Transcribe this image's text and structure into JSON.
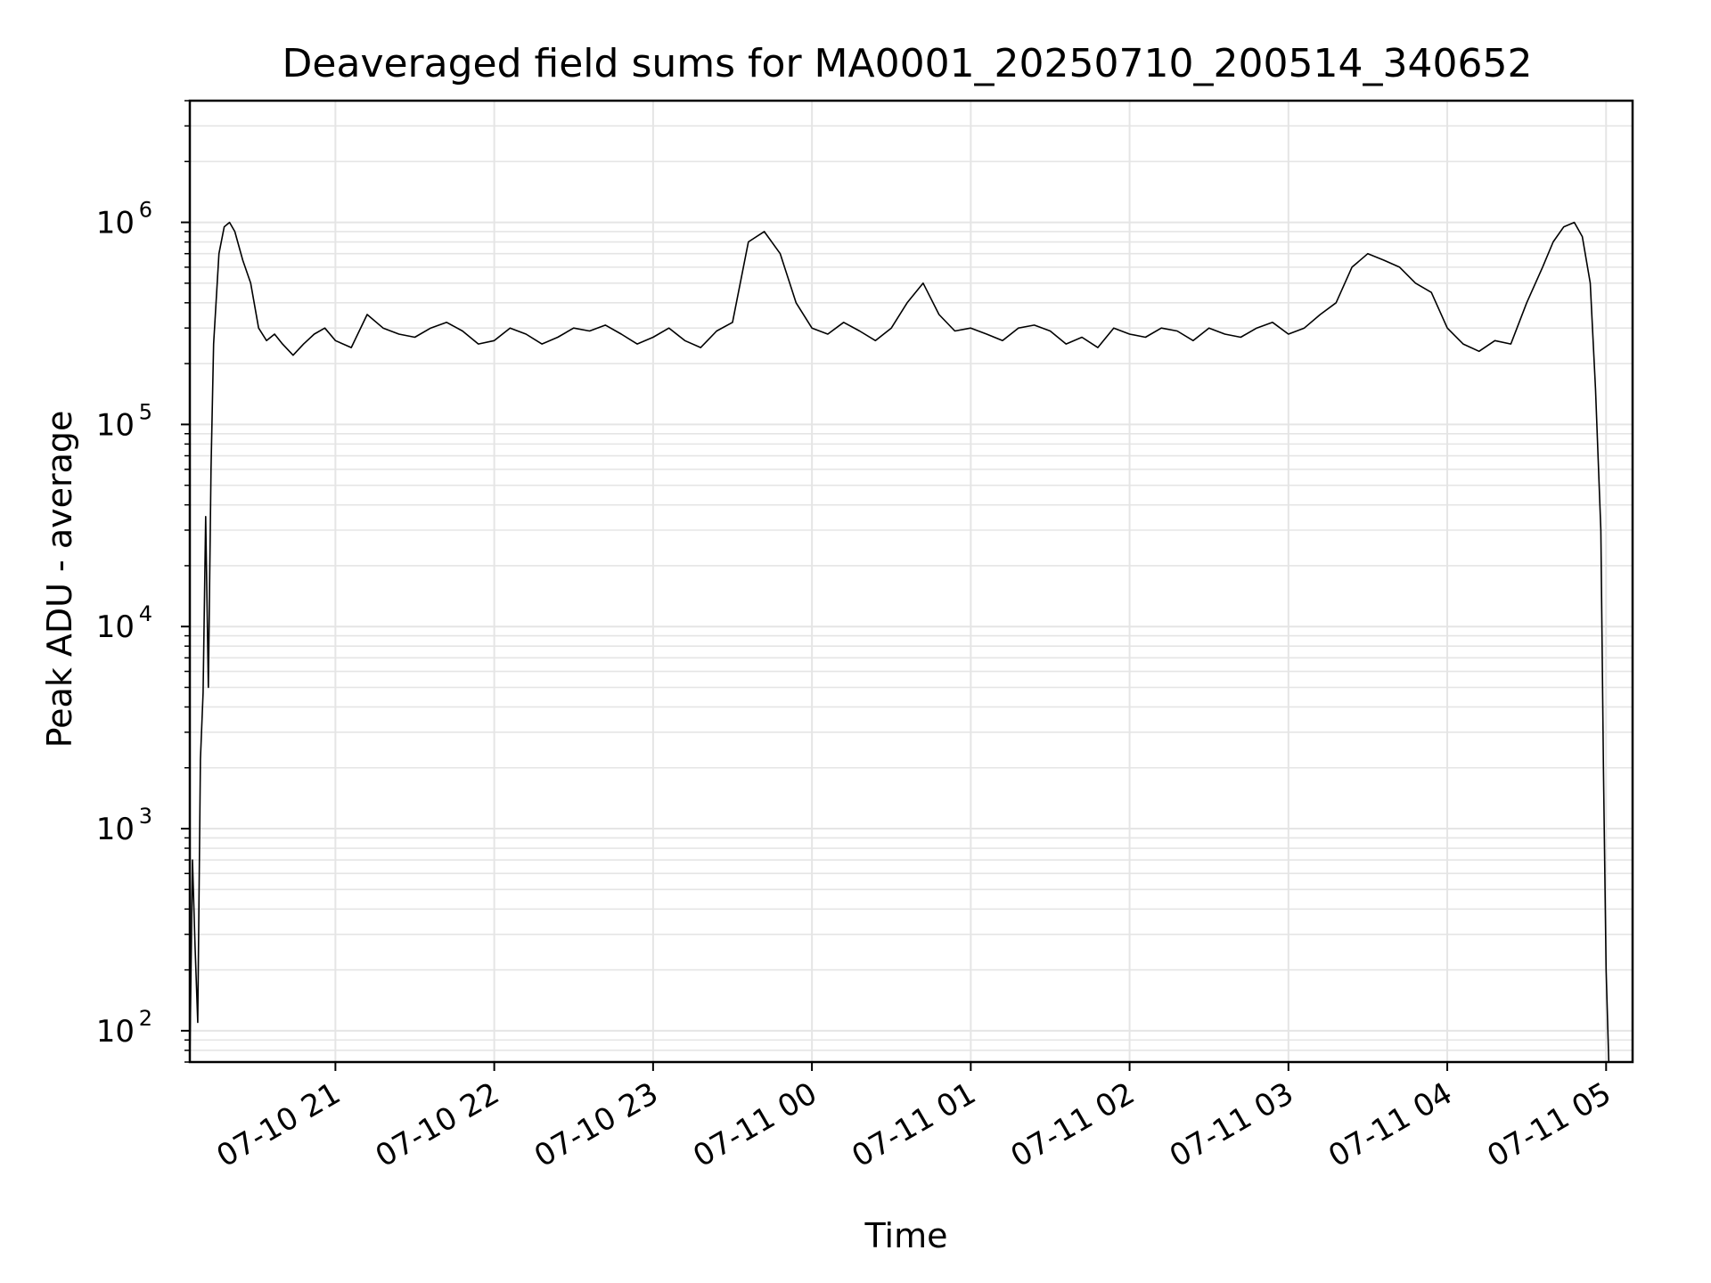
{
  "chart_data": {
    "type": "line",
    "title": "Deaveraged field sums for MA0001_20250710_200514_340652",
    "xlabel": "Time",
    "ylabel": "Peak ADU - average",
    "yscale": "log",
    "ylim": [
      70,
      4000000
    ],
    "xlim": [
      "2025-07-10 20:05",
      "2025-07-11 05:10"
    ],
    "grid": true,
    "line_color": "#000000",
    "grid_color": "#e5e5e5",
    "x_ticks": [
      {
        "t": "2025-07-10 21:00",
        "label": "07-10 21"
      },
      {
        "t": "2025-07-10 22:00",
        "label": "07-10 22"
      },
      {
        "t": "2025-07-10 23:00",
        "label": "07-10 23"
      },
      {
        "t": "2025-07-11 00:00",
        "label": "07-11 00"
      },
      {
        "t": "2025-07-11 01:00",
        "label": "07-11 01"
      },
      {
        "t": "2025-07-11 02:00",
        "label": "07-11 02"
      },
      {
        "t": "2025-07-11 03:00",
        "label": "07-11 03"
      },
      {
        "t": "2025-07-11 04:00",
        "label": "07-11 04"
      },
      {
        "t": "2025-07-11 05:00",
        "label": "07-11 05"
      }
    ],
    "y_ticks": [
      {
        "value": 100,
        "base": "10",
        "exp": "2"
      },
      {
        "value": 1000,
        "base": "10",
        "exp": "3"
      },
      {
        "value": 10000,
        "base": "10",
        "exp": "4"
      },
      {
        "value": 100000,
        "base": "10",
        "exp": "5"
      },
      {
        "value": 1000000,
        "base": "10",
        "exp": "6"
      }
    ],
    "series": [
      {
        "x": [
          "2025-07-10 20:05",
          "2025-07-10 20:06",
          "2025-07-10 20:07",
          "2025-07-10 20:08",
          "2025-07-10 20:09",
          "2025-07-10 20:10",
          "2025-07-10 20:11",
          "2025-07-10 20:12",
          "2025-07-10 20:13",
          "2025-07-10 20:14",
          "2025-07-10 20:16",
          "2025-07-10 20:18",
          "2025-07-10 20:20",
          "2025-07-10 20:22",
          "2025-07-10 20:25",
          "2025-07-10 20:28",
          "2025-07-10 20:31",
          "2025-07-10 20:34",
          "2025-07-10 20:37",
          "2025-07-10 20:40",
          "2025-07-10 20:44",
          "2025-07-10 20:48",
          "2025-07-10 20:52",
          "2025-07-10 20:56",
          "2025-07-10 21:00",
          "2025-07-10 21:06",
          "2025-07-10 21:12",
          "2025-07-10 21:18",
          "2025-07-10 21:24",
          "2025-07-10 21:30",
          "2025-07-10 21:36",
          "2025-07-10 21:42",
          "2025-07-10 21:48",
          "2025-07-10 21:54",
          "2025-07-10 22:00",
          "2025-07-10 22:06",
          "2025-07-10 22:12",
          "2025-07-10 22:18",
          "2025-07-10 22:24",
          "2025-07-10 22:30",
          "2025-07-10 22:36",
          "2025-07-10 22:42",
          "2025-07-10 22:48",
          "2025-07-10 22:54",
          "2025-07-10 23:00",
          "2025-07-10 23:06",
          "2025-07-10 23:12",
          "2025-07-10 23:18",
          "2025-07-10 23:24",
          "2025-07-10 23:30",
          "2025-07-10 23:36",
          "2025-07-10 23:42",
          "2025-07-10 23:48",
          "2025-07-10 23:54",
          "2025-07-11 00:00",
          "2025-07-11 00:06",
          "2025-07-11 00:12",
          "2025-07-11 00:18",
          "2025-07-11 00:24",
          "2025-07-11 00:30",
          "2025-07-11 00:36",
          "2025-07-11 00:42",
          "2025-07-11 00:48",
          "2025-07-11 00:54",
          "2025-07-11 01:00",
          "2025-07-11 01:06",
          "2025-07-11 01:12",
          "2025-07-11 01:18",
          "2025-07-11 01:24",
          "2025-07-11 01:30",
          "2025-07-11 01:36",
          "2025-07-11 01:42",
          "2025-07-11 01:48",
          "2025-07-11 01:54",
          "2025-07-11 02:00",
          "2025-07-11 02:06",
          "2025-07-11 02:12",
          "2025-07-11 02:18",
          "2025-07-11 02:24",
          "2025-07-11 02:30",
          "2025-07-11 02:36",
          "2025-07-11 02:42",
          "2025-07-11 02:48",
          "2025-07-11 02:54",
          "2025-07-11 03:00",
          "2025-07-11 03:06",
          "2025-07-11 03:12",
          "2025-07-11 03:18",
          "2025-07-11 03:24",
          "2025-07-11 03:30",
          "2025-07-11 03:36",
          "2025-07-11 03:42",
          "2025-07-11 03:48",
          "2025-07-11 03:54",
          "2025-07-11 04:00",
          "2025-07-11 04:06",
          "2025-07-11 04:12",
          "2025-07-11 04:18",
          "2025-07-11 04:24",
          "2025-07-11 04:30",
          "2025-07-11 04:36",
          "2025-07-11 04:40",
          "2025-07-11 04:44",
          "2025-07-11 04:48",
          "2025-07-11 04:51",
          "2025-07-11 04:54",
          "2025-07-11 04:56",
          "2025-07-11 04:58",
          "2025-07-11 04:59",
          "2025-07-11 05:00",
          "2025-07-11 05:01"
        ],
        "y": [
          70,
          700,
          260,
          110,
          2200,
          4700,
          35000,
          5000,
          60000,
          250000,
          700000,
          950000,
          1000000,
          900000,
          650000,
          500000,
          300000,
          260000,
          280000,
          250000,
          220000,
          250000,
          280000,
          300000,
          260000,
          240000,
          350000,
          300000,
          280000,
          270000,
          300000,
          320000,
          290000,
          250000,
          260000,
          300000,
          280000,
          250000,
          270000,
          300000,
          290000,
          310000,
          280000,
          250000,
          270000,
          300000,
          260000,
          240000,
          290000,
          320000,
          800000,
          900000,
          700000,
          400000,
          300000,
          280000,
          320000,
          290000,
          260000,
          300000,
          400000,
          500000,
          350000,
          290000,
          300000,
          280000,
          260000,
          300000,
          310000,
          290000,
          250000,
          270000,
          240000,
          300000,
          280000,
          270000,
          300000,
          290000,
          260000,
          300000,
          280000,
          270000,
          300000,
          320000,
          280000,
          300000,
          350000,
          400000,
          600000,
          700000,
          650000,
          600000,
          500000,
          450000,
          300000,
          250000,
          230000,
          260000,
          250000,
          400000,
          600000,
          800000,
          950000,
          1000000,
          850000,
          500000,
          150000,
          30000,
          2000,
          200,
          70
        ]
      }
    ]
  }
}
